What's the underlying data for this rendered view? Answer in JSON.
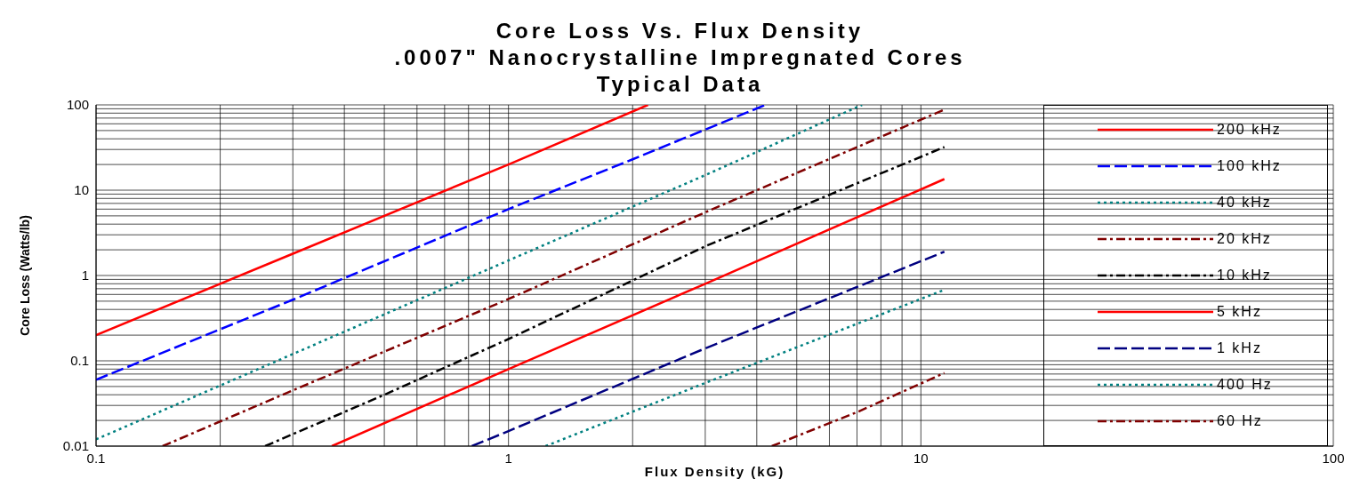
{
  "chart_data": {
    "type": "line",
    "title": "Core Loss Vs. Flux Density\n.0007\" Nanocrystalline Impregnated Cores\nTypical Data",
    "xlabel": "Flux Density (kG)",
    "ylabel": "Core Loss (Watts/lb)",
    "log": "xy",
    "grid": true,
    "legend": "right",
    "marker": "none",
    "xlim": [
      0.1,
      100
    ],
    "ylim": [
      0.01,
      100
    ],
    "xticks": [
      0.1,
      {
        "value": 0.2,
        "label": null
      },
      {
        "value": 0.3,
        "label": null
      },
      {
        "value": 0.4,
        "label": null
      },
      {
        "value": 0.5,
        "label": null
      },
      {
        "value": 0.6,
        "label": null
      },
      {
        "value": 0.7,
        "label": null
      },
      {
        "value": 0.8,
        "label": null
      },
      {
        "value": 0.9,
        "label": null
      },
      1,
      {
        "value": 2,
        "label": null
      },
      {
        "value": 3,
        "label": null
      },
      {
        "value": 4,
        "label": null
      },
      {
        "value": 5,
        "label": null
      },
      {
        "value": 6,
        "label": null
      },
      {
        "value": 7,
        "label": null
      },
      {
        "value": 8,
        "label": null
      },
      {
        "value": 9,
        "label": null
      },
      10,
      100
    ],
    "yticks": [
      0.01,
      {
        "value": 0.02,
        "label": null
      },
      {
        "value": 0.03,
        "label": null
      },
      {
        "value": 0.04,
        "label": null
      },
      {
        "value": 0.05,
        "label": null
      },
      {
        "value": 0.06,
        "label": null
      },
      {
        "value": 0.07,
        "label": null
      },
      {
        "value": 0.08,
        "label": null
      },
      {
        "value": 0.09,
        "label": null
      },
      0.1,
      {
        "value": 0.2,
        "label": null
      },
      {
        "value": 0.3,
        "label": null
      },
      {
        "value": 0.4,
        "label": null
      },
      {
        "value": 0.5,
        "label": null
      },
      {
        "value": 0.6,
        "label": null
      },
      {
        "value": 0.7,
        "label": null
      },
      {
        "value": 0.8,
        "label": null
      },
      {
        "value": 0.9,
        "label": null
      },
      1,
      {
        "value": 2,
        "label": null
      },
      {
        "value": 3,
        "label": null
      },
      {
        "value": 4,
        "label": null
      },
      {
        "value": 5,
        "label": null
      },
      {
        "value": 6,
        "label": null
      },
      {
        "value": 7,
        "label": null
      },
      {
        "value": 8,
        "label": null
      },
      {
        "value": 9,
        "label": null
      },
      10,
      {
        "value": 20,
        "label": null
      },
      {
        "value": 30,
        "label": null
      },
      {
        "value": 40,
        "label": null
      },
      {
        "value": 50,
        "label": null
      },
      {
        "value": 60,
        "label": null
      },
      {
        "value": 70,
        "label": null
      },
      {
        "value": 80,
        "label": null
      },
      {
        "value": 90,
        "label": null
      },
      100
    ],
    "series": [
      {
        "name": "200 kHz",
        "color": "#ff0000",
        "line_style": "solid",
        "x": [
          0.1,
          0.3,
          1,
          2.18
        ],
        "values": [
          0.2,
          1.8,
          20,
          100
        ]
      },
      {
        "name": "100 kHz",
        "color": "#0000ff",
        "line_style": "dashed",
        "x": [
          0.1,
          0.3,
          1,
          2,
          4.2
        ],
        "values": [
          0.06,
          0.52,
          6,
          23,
          100
        ]
      },
      {
        "name": "40 kHz",
        "color": "#008080",
        "line_style": "dotted",
        "x": [
          0.1,
          0.3,
          1,
          3,
          7.2
        ],
        "values": [
          0.012,
          0.12,
          1.5,
          15,
          100
        ]
      },
      {
        "name": "20 kHz",
        "color": "#800000",
        "line_style": "dashdot",
        "x": [
          0.145,
          0.3,
          1,
          3,
          11.4
        ],
        "values": [
          0.01,
          0.045,
          0.53,
          5.5,
          88
        ]
      },
      {
        "name": "10 kHz",
        "color": "#000000",
        "line_style": "dashdot",
        "x": [
          0.257,
          0.5,
          1,
          3,
          11.4
        ],
        "values": [
          0.01,
          0.04,
          0.18,
          2.2,
          32
        ]
      },
      {
        "name": "5 kHz",
        "color": "#ff0000",
        "line_style": "solid",
        "x": [
          0.373,
          1,
          3,
          11.4
        ],
        "values": [
          0.01,
          0.08,
          0.8,
          13.5
        ]
      },
      {
        "name": "1 kHz",
        "color": "#000080",
        "line_style": "dashed",
        "x": [
          0.815,
          1,
          3,
          11.4
        ],
        "values": [
          0.01,
          0.015,
          0.14,
          1.9
        ]
      },
      {
        "name": "400 Hz",
        "color": "#008080",
        "line_style": "dotted",
        "x": [
          1.23,
          3,
          11.4
        ],
        "values": [
          0.01,
          0.055,
          0.68
        ]
      },
      {
        "name": "60 Hz",
        "color": "#800000",
        "line_style": "dashdot",
        "x": [
          4.35,
          7,
          11.4
        ],
        "values": [
          0.01,
          0.025,
          0.072
        ]
      }
    ]
  }
}
